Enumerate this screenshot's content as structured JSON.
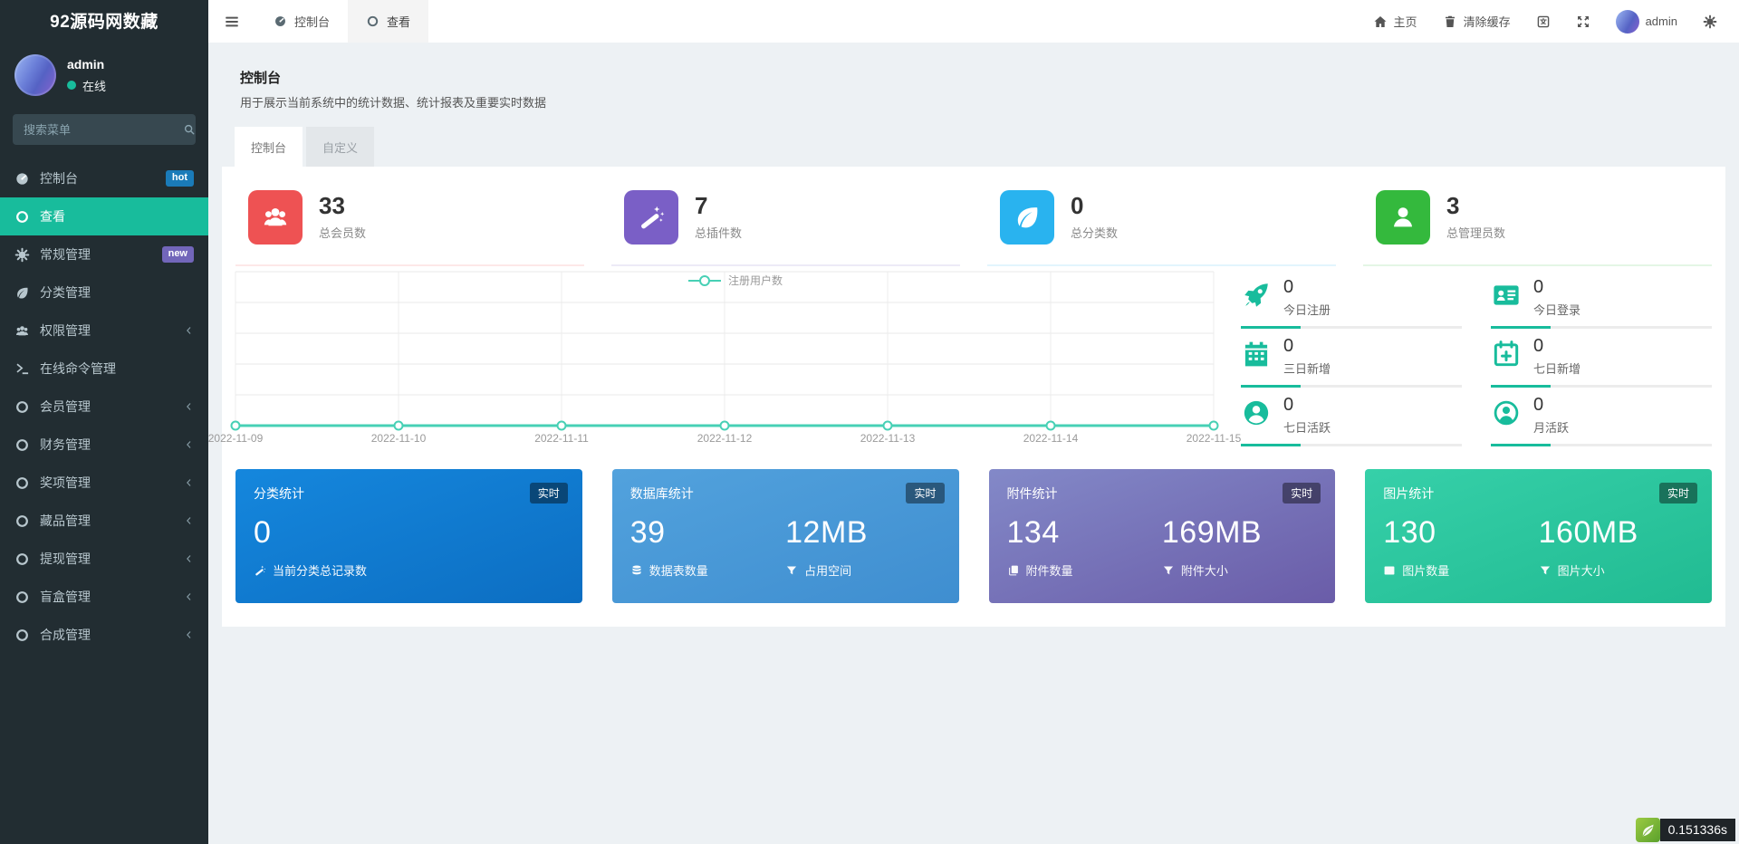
{
  "brand": {
    "title": "92源码网数藏"
  },
  "user": {
    "name": "admin",
    "status": "在线"
  },
  "search": {
    "placeholder": "搜索菜单"
  },
  "sidebar": {
    "items": [
      {
        "label": "控制台",
        "icon": "gauge-icon",
        "badge": "hot",
        "badge_color": "#1a7bb9",
        "active": false,
        "chevron": false
      },
      {
        "label": "查看",
        "icon": "circle-icon",
        "active": true,
        "chevron": false
      },
      {
        "label": "常规管理",
        "icon": "gears-icon",
        "badge": "new",
        "badge_color": "#7266ba",
        "active": false,
        "chevron": false
      },
      {
        "label": "分类管理",
        "icon": "leaf-icon",
        "active": false,
        "chevron": false
      },
      {
        "label": "权限管理",
        "icon": "users-icon",
        "active": false,
        "chevron": true
      },
      {
        "label": "在线命令管理",
        "icon": "terminal-icon",
        "active": false,
        "chevron": false
      },
      {
        "label": "会员管理",
        "icon": "circle-icon",
        "active": false,
        "chevron": true
      },
      {
        "label": "财务管理",
        "icon": "circle-icon",
        "active": false,
        "chevron": true
      },
      {
        "label": "奖项管理",
        "icon": "circle-icon",
        "active": false,
        "chevron": true
      },
      {
        "label": "藏品管理",
        "icon": "circle-icon",
        "active": false,
        "chevron": true
      },
      {
        "label": "提现管理",
        "icon": "circle-icon",
        "active": false,
        "chevron": true
      },
      {
        "label": "盲盒管理",
        "icon": "circle-icon",
        "active": false,
        "chevron": true
      },
      {
        "label": "合成管理",
        "icon": "circle-icon",
        "active": false,
        "chevron": true
      }
    ]
  },
  "topbar": {
    "tabs": [
      {
        "label": "控制台",
        "icon": "gauge-icon",
        "active": false
      },
      {
        "label": "查看",
        "icon": "circle-icon",
        "active": true
      }
    ],
    "actions": [
      {
        "name": "home",
        "label": "主页",
        "icon": "home-icon"
      },
      {
        "name": "clear-cache",
        "label": "清除缓存",
        "icon": "trash-icon"
      },
      {
        "name": "language",
        "label": "",
        "icon": "language-icon"
      },
      {
        "name": "fullscreen",
        "label": "",
        "icon": "fullscreen-icon"
      },
      {
        "name": "profile",
        "label": "admin",
        "icon": "avatar"
      },
      {
        "name": "settings",
        "label": "",
        "icon": "gears-icon"
      }
    ]
  },
  "page": {
    "title": "控制台",
    "subtitle": "用于展示当前系统中的统计数据、统计报表及重要实时数据",
    "tabs": [
      {
        "label": "控制台",
        "active": true
      },
      {
        "label": "自定义",
        "active": false
      }
    ]
  },
  "stats": [
    {
      "value": "33",
      "label": "总会员数",
      "color": "#ee5253",
      "icon": "users-icon"
    },
    {
      "value": "7",
      "label": "总插件数",
      "color": "#7a5fc6",
      "icon": "wand-icon"
    },
    {
      "value": "0",
      "label": "总分类数",
      "color": "#29b3ef",
      "icon": "leaf-icon"
    },
    {
      "value": "3",
      "label": "总管理员数",
      "color": "#34b93d",
      "icon": "user-icon"
    }
  ],
  "chart_data": {
    "type": "line",
    "title": "",
    "x": [
      "2022-11-09",
      "2022-11-10",
      "2022-11-11",
      "2022-11-12",
      "2022-11-13",
      "2022-11-14",
      "2022-11-15"
    ],
    "series": [
      {
        "name": "注册用户数",
        "values": [
          0,
          0,
          0,
          0,
          0,
          0,
          0
        ]
      }
    ],
    "ylim": [
      0,
      1
    ],
    "y_axis_labels": false,
    "grid": true,
    "legend_position": "top-center",
    "color": "#47d0b5"
  },
  "mini_stats": [
    {
      "value": "0",
      "label": "今日注册",
      "icon": "rocket-icon"
    },
    {
      "value": "0",
      "label": "今日登录",
      "icon": "id-card-icon"
    },
    {
      "value": "0",
      "label": "三日新增",
      "icon": "calendar-icon"
    },
    {
      "value": "0",
      "label": "七日新增",
      "icon": "calendar-plus-icon"
    },
    {
      "value": "0",
      "label": "七日活跃",
      "icon": "user-circle-icon"
    },
    {
      "value": "0",
      "label": "月活跃",
      "icon": "user-circle-o-icon"
    }
  ],
  "panels": [
    {
      "title": "分类统计",
      "badge": "实时",
      "gradient": [
        "#1587dd",
        "#0c6ec2"
      ],
      "items": [
        {
          "value": "0",
          "label": "当前分类总记录数",
          "icon": "wand-icon"
        }
      ]
    },
    {
      "title": "数据库统计",
      "badge": "实时",
      "gradient": [
        "#52a2dd",
        "#3f8ed0"
      ],
      "items": [
        {
          "value": "39",
          "label": "数据表数量",
          "icon": "database-icon"
        },
        {
          "value": "12MB",
          "label": "占用空间",
          "icon": "filter-icon"
        }
      ]
    },
    {
      "title": "附件统计",
      "badge": "实时",
      "gradient": [
        "#8389c8",
        "#6a5ca8"
      ],
      "items": [
        {
          "value": "134",
          "label": "附件数量",
          "icon": "copy-icon"
        },
        {
          "value": "169MB",
          "label": "附件大小",
          "icon": "filter-icon"
        }
      ]
    },
    {
      "title": "图片统计",
      "badge": "实时",
      "gradient": [
        "#36d0a9",
        "#21bb92"
      ],
      "items": [
        {
          "value": "130",
          "label": "图片数量",
          "icon": "image-icon"
        },
        {
          "value": "160MB",
          "label": "图片大小",
          "icon": "filter-icon"
        }
      ]
    }
  ],
  "footer": {
    "time": "0.151336s"
  }
}
